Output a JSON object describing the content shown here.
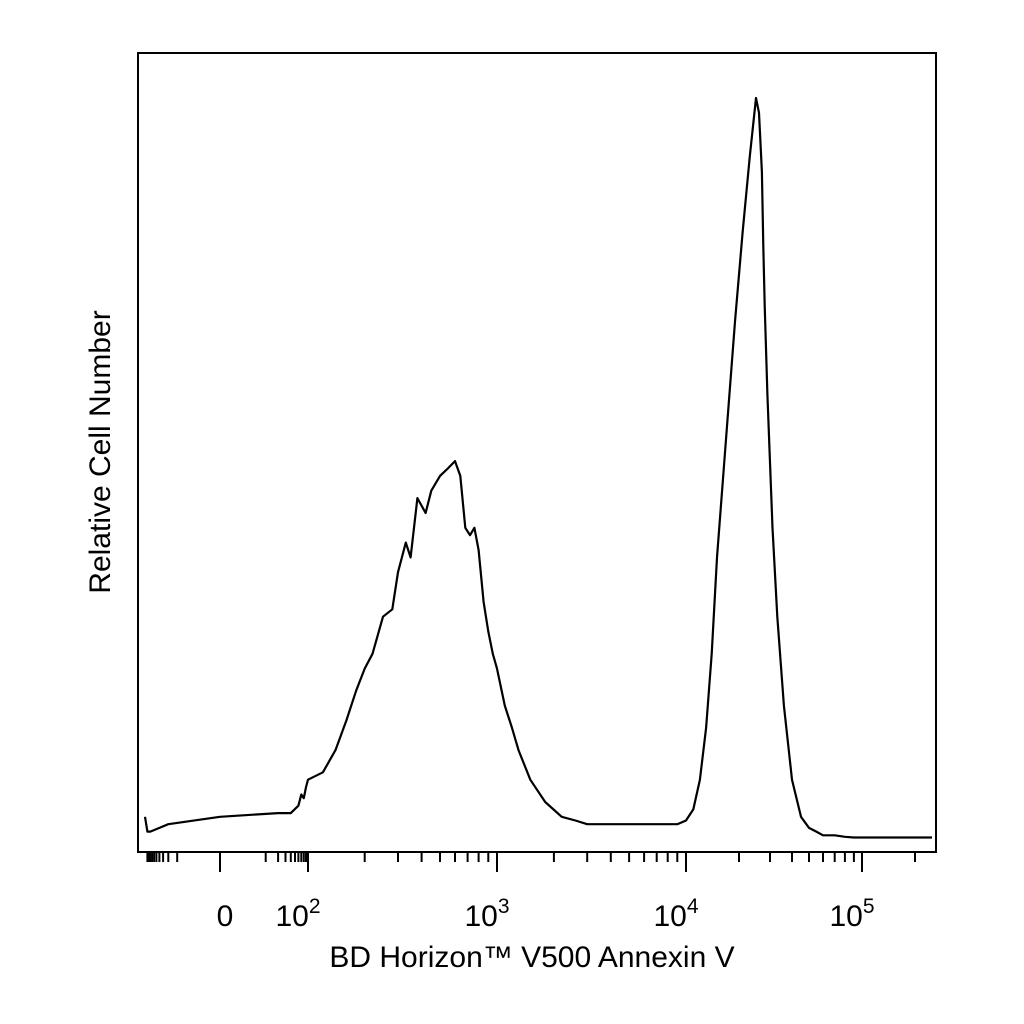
{
  "chart_data": {
    "type": "line",
    "xscale": "biexponential",
    "xlabel": "BD Horizon™ V500 Annexin V",
    "ylabel": "Relative Cell Number",
    "x_ticks": [
      {
        "value": 0,
        "base": "0",
        "exp": ""
      },
      {
        "value": 100,
        "base": "10",
        "exp": "2"
      },
      {
        "value": 1000,
        "base": "10",
        "exp": "3"
      },
      {
        "value": 10000,
        "base": "10",
        "exp": "4"
      },
      {
        "value": 100000,
        "base": "10",
        "exp": "5"
      }
    ],
    "grid": false,
    "legend": "none",
    "series": [
      {
        "x": [
          -300,
          -250,
          -200,
          -100,
          -50,
          0,
          20,
          40,
          60,
          70,
          80,
          90,
          100,
          120,
          140,
          160,
          180,
          200,
          220,
          250,
          280,
          300,
          330,
          350,
          380,
          420,
          450,
          500,
          550,
          600,
          640,
          680,
          720,
          760,
          800,
          850,
          900,
          950,
          1000,
          1100,
          1200,
          1300,
          1500,
          1800,
          2200,
          2600,
          3000,
          4000,
          5000,
          7000,
          9000,
          10000,
          11000,
          12000,
          13000,
          14000,
          15000,
          17000,
          19000,
          21000,
          23000,
          25000,
          26000,
          27000,
          27500,
          28000,
          29000,
          31000,
          33000,
          36000,
          40000,
          45000,
          50000,
          55000,
          60000,
          70000,
          80000,
          90000,
          100000,
          120000,
          150000,
          200000,
          250000
        ],
        "y": [
          3,
          1,
          1,
          1.5,
          2,
          3,
          3.5,
          3.5,
          4.5,
          6,
          5.5,
          7,
          8,
          9,
          12,
          16,
          20,
          23,
          25,
          30,
          31,
          36,
          40,
          38,
          46,
          44,
          47,
          49,
          50,
          51,
          49,
          42,
          41,
          42,
          39,
          32,
          28,
          25,
          23,
          18,
          15,
          12,
          8,
          5,
          3,
          2.5,
          2,
          2,
          2,
          2,
          2,
          2.5,
          4,
          8,
          15,
          25,
          38,
          55,
          70,
          82,
          92,
          100,
          98,
          90,
          80,
          72,
          60,
          42,
          30,
          18,
          8,
          3,
          1.5,
          1,
          0.5,
          0.5,
          0.3,
          0.2,
          0.2,
          0.2,
          0.2,
          0.2,
          0.2
        ]
      }
    ]
  }
}
